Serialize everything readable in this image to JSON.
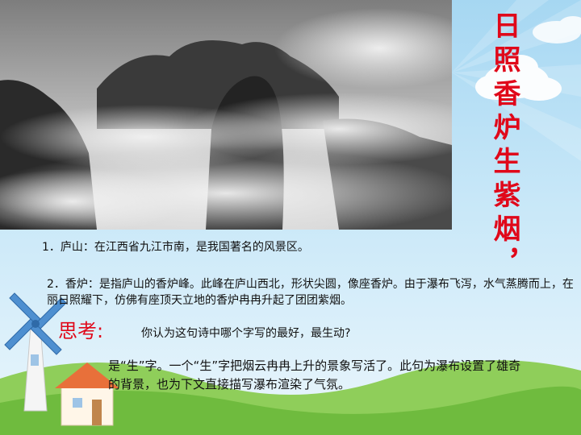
{
  "title": {
    "text": "日照香炉生紫烟，"
  },
  "notes": [
    {
      "text": "1．庐山：在江西省九江市南，是我国著名的风景区。"
    },
    {
      "text": "2．香炉：是指庐山的香炉峰。此峰在庐山西北，形状尖圆，像座香炉。由于瀑布飞泻，水气蒸腾而上，在丽日照耀下，仿佛有座顶天立地的香炉冉冉升起了团团紫烟。"
    }
  ],
  "think": {
    "label": "思考:",
    "question": "你认为这句诗中哪个字写的最好，最生动?",
    "answer": "是“生”字。一个“生”字把烟云冉冉上升的景象写活了。此句为瀑布设置了雄奇的背景，也为下文直接描写瀑布渲染了气氛。"
  },
  "colors": {
    "title": "#e0081a",
    "think_label": "#e0081a",
    "body_text": "#111111",
    "sky": "#a6d7f2"
  }
}
